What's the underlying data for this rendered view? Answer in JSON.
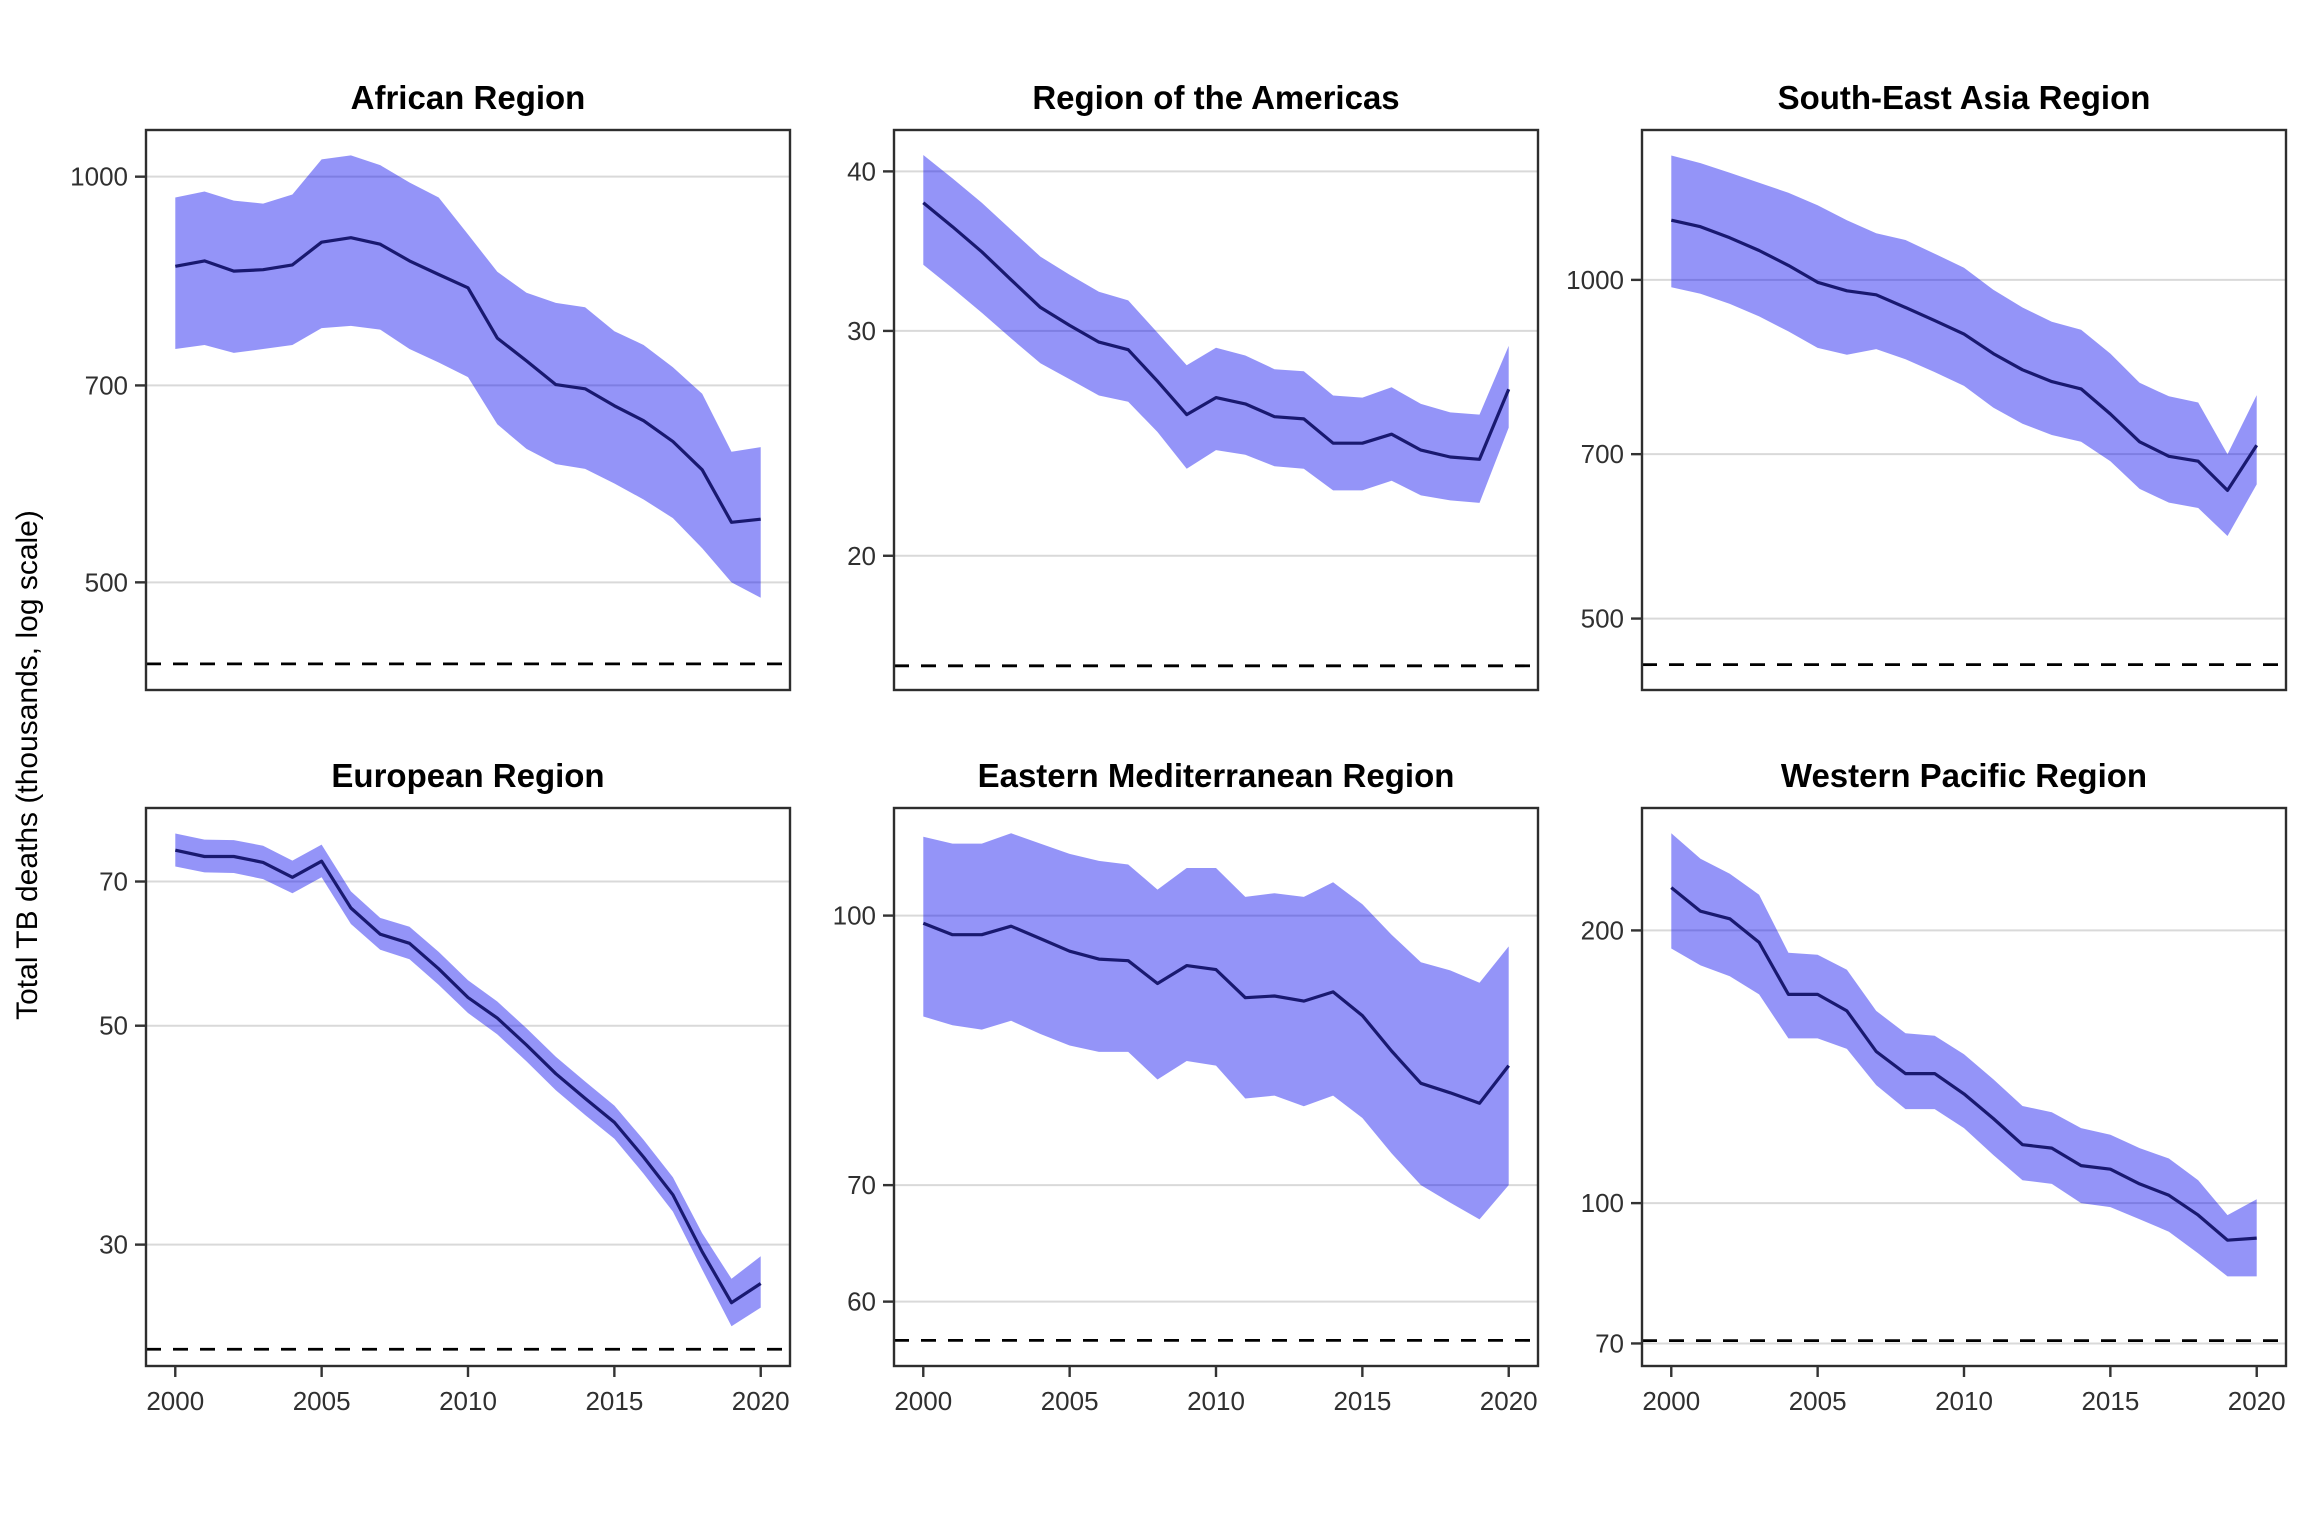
{
  "page": {
    "background": "#ffffff"
  },
  "y_axis_title": "Total TB deaths (thousands, log scale)",
  "style": {
    "ribbon_fill": "#0000ee",
    "ribbon_opacity": 0.42,
    "ribbon_rendered_color": "#9999ff",
    "line_color": "#191970",
    "gridline_color": "#d9d9d9",
    "reference_line_color": "#000000",
    "panel_border_color": "#2e2e2e",
    "tick_color": "#333333",
    "tick_label_color": "#303030",
    "title_color": "#000000"
  },
  "chart_data": [
    {
      "type": "line",
      "subtype": "line-with-confidence-ribbon",
      "title": "African Region",
      "ylabel": "Total TB deaths (thousands, log scale)",
      "y_scale": "log10",
      "ylim": [
        416,
        1083
      ],
      "y_ticks": [
        1000,
        700,
        500
      ],
      "x_ticks": [
        2000,
        2005,
        2010,
        2015,
        2020
      ],
      "x_tick_labels_visible": false,
      "xlim": [
        1999,
        2021
      ],
      "grid": "major-y-only",
      "legend": "none",
      "reference_line": {
        "style": "dashed",
        "value": 435
      },
      "x": [
        2000,
        2001,
        2002,
        2003,
        2004,
        2005,
        2006,
        2007,
        2008,
        2009,
        2010,
        2011,
        2012,
        2013,
        2014,
        2015,
        2016,
        2017,
        2018,
        2019,
        2020
      ],
      "series": [
        {
          "name": "best estimate",
          "values": [
            858,
            866,
            851,
            853,
            860,
            894,
            901,
            891,
            866,
            846,
            827,
            759,
            730,
            701,
            696,
            676,
            659,
            636,
            606,
            554,
            557
          ]
        },
        {
          "name": "lower uncertainty bound",
          "values": [
            745,
            750,
            740,
            745,
            750,
            772,
            775,
            770,
            745,
            728,
            710,
            655,
            628,
            612,
            607,
            592,
            576,
            558,
            530,
            500,
            487
          ]
        },
        {
          "name": "upper uncertainty bound",
          "values": [
            965,
            975,
            960,
            955,
            970,
            1030,
            1037,
            1020,
            990,
            965,
            906,
            850,
            820,
            806,
            800,
            768,
            750,
            722,
            690,
            625,
            630
          ]
        }
      ]
    },
    {
      "type": "line",
      "subtype": "line-with-confidence-ribbon",
      "title": "Region of the Americas",
      "ylabel": "Total TB deaths (thousands, log scale)",
      "y_scale": "log10",
      "ylim": [
        15.7,
        43.1
      ],
      "y_ticks": [
        40,
        30,
        20
      ],
      "x_ticks": [
        2000,
        2005,
        2010,
        2015,
        2020
      ],
      "x_tick_labels_visible": false,
      "xlim": [
        1999,
        2021
      ],
      "grid": "major-y-only",
      "legend": "none",
      "reference_line": {
        "style": "dashed",
        "value": 16.4
      },
      "x": [
        2000,
        2001,
        2002,
        2003,
        2004,
        2005,
        2006,
        2007,
        2008,
        2009,
        2010,
        2011,
        2012,
        2013,
        2014,
        2015,
        2016,
        2017,
        2018,
        2019,
        2020
      ],
      "series": [
        {
          "name": "best estimate",
          "values": [
            37.8,
            36.2,
            34.6,
            32.9,
            31.3,
            30.3,
            29.4,
            29.0,
            27.4,
            25.8,
            26.6,
            26.3,
            25.7,
            25.6,
            24.5,
            24.5,
            24.9,
            24.2,
            23.9,
            23.8,
            27.0
          ]
        },
        {
          "name": "lower uncertainty bound",
          "values": [
            33.8,
            32.4,
            31.0,
            29.6,
            28.3,
            27.5,
            26.7,
            26.4,
            25.0,
            23.4,
            24.2,
            24.0,
            23.5,
            23.4,
            22.5,
            22.5,
            22.9,
            22.3,
            22.1,
            22.0,
            25.2
          ]
        },
        {
          "name": "upper uncertainty bound",
          "values": [
            41.2,
            39.5,
            37.8,
            36.0,
            34.3,
            33.2,
            32.2,
            31.7,
            29.9,
            28.2,
            29.1,
            28.7,
            28.0,
            27.9,
            26.7,
            26.6,
            27.1,
            26.3,
            25.9,
            25.8,
            29.2
          ]
        }
      ]
    },
    {
      "type": "line",
      "subtype": "line-with-confidence-ribbon",
      "title": "South-East Asia Region",
      "ylabel": "Total TB deaths (thousands, log scale)",
      "y_scale": "log10",
      "ylim": [
        432,
        1359
      ],
      "y_ticks": [
        1000,
        700,
        500
      ],
      "x_ticks": [
        2000,
        2005,
        2010,
        2015,
        2020
      ],
      "x_tick_labels_visible": false,
      "xlim": [
        1999,
        2021
      ],
      "grid": "major-y-only",
      "legend": "none",
      "reference_line": {
        "style": "dashed",
        "value": 455
      },
      "x": [
        2000,
        2001,
        2002,
        2003,
        2004,
        2005,
        2006,
        2007,
        2008,
        2009,
        2010,
        2011,
        2012,
        2013,
        2014,
        2015,
        2016,
        2017,
        2018,
        2019,
        2020
      ],
      "series": [
        {
          "name": "best estimate",
          "values": [
            1130,
            1115,
            1090,
            1062,
            1030,
            995,
            978,
            970,
            945,
            920,
            895,
            860,
            832,
            812,
            800,
            760,
            718,
            697,
            690,
            650,
            713
          ]
        },
        {
          "name": "lower uncertainty bound",
          "values": [
            985,
            972,
            952,
            928,
            900,
            870,
            858,
            868,
            850,
            828,
            805,
            770,
            745,
            728,
            718,
            690,
            652,
            634,
            627,
            592,
            658
          ]
        },
        {
          "name": "upper uncertainty bound",
          "values": [
            1290,
            1270,
            1245,
            1220,
            1195,
            1165,
            1130,
            1100,
            1085,
            1055,
            1025,
            980,
            945,
            918,
            903,
            860,
            810,
            788,
            778,
            700,
            790
          ]
        }
      ]
    },
    {
      "type": "line",
      "subtype": "line-with-confidence-ribbon",
      "title": "European Region",
      "ylabel": "Total TB deaths (thousands, log scale)",
      "y_scale": "log10",
      "ylim": [
        22.6,
        83.1
      ],
      "y_ticks": [
        70,
        50,
        30
      ],
      "x_ticks": [
        2000,
        2005,
        2010,
        2015,
        2020
      ],
      "x_tick_labels_visible": true,
      "xlim": [
        1999,
        2021
      ],
      "grid": "major-y-only",
      "legend": "none",
      "reference_line": {
        "style": "dashed",
        "value": 23.5
      },
      "x": [
        2000,
        2001,
        2002,
        2003,
        2004,
        2005,
        2006,
        2007,
        2008,
        2009,
        2010,
        2011,
        2012,
        2013,
        2014,
        2015,
        2016,
        2017,
        2018,
        2019,
        2020
      ],
      "series": [
        {
          "name": "best estimate",
          "values": [
            75.3,
            74.2,
            74.2,
            73.2,
            70.7,
            73.4,
            65.8,
            61.9,
            60.6,
            57.1,
            53.4,
            50.9,
            47.8,
            44.7,
            42.2,
            39.9,
            36.8,
            33.7,
            29.5,
            26.2,
            27.4
          ]
        },
        {
          "name": "lower uncertainty bound",
          "values": [
            72.5,
            71.5,
            71.4,
            70.4,
            68.1,
            70.7,
            63.4,
            59.7,
            58.4,
            55.0,
            51.5,
            49.0,
            46.0,
            43.0,
            40.6,
            38.4,
            35.4,
            32.4,
            28.3,
            24.8,
            25.9
          ]
        },
        {
          "name": "upper uncertainty bound",
          "values": [
            78.3,
            77.2,
            77.1,
            76.1,
            73.5,
            76.3,
            68.4,
            64.3,
            63.0,
            59.4,
            55.6,
            52.9,
            49.7,
            46.5,
            43.9,
            41.5,
            38.3,
            35.1,
            30.8,
            27.7,
            29.2
          ]
        }
      ]
    },
    {
      "type": "line",
      "subtype": "line-with-confidence-ribbon",
      "title": "Eastern Mediterranean Region",
      "ylabel": "Total TB deaths (thousands, log scale)",
      "y_scale": "log10",
      "ylim": [
        55.1,
        115.3
      ],
      "y_ticks": [
        100,
        70,
        60
      ],
      "x_ticks": [
        2000,
        2005,
        2010,
        2015,
        2020
      ],
      "x_tick_labels_visible": true,
      "xlim": [
        1999,
        2021
      ],
      "grid": "major-y-only",
      "legend": "none",
      "reference_line": {
        "style": "dashed",
        "value": 57
      },
      "x": [
        2000,
        2001,
        2002,
        2003,
        2004,
        2005,
        2006,
        2007,
        2008,
        2009,
        2010,
        2011,
        2012,
        2013,
        2014,
        2015,
        2016,
        2017,
        2018,
        2019,
        2020
      ],
      "series": [
        {
          "name": "best estimate",
          "values": [
            99,
            97.5,
            97.5,
            98.6,
            97,
            95.4,
            94.4,
            94.2,
            91.4,
            93.6,
            93.1,
            89.7,
            89.9,
            89.3,
            90.4,
            87.6,
            83.6,
            80.1,
            79.1,
            78,
            82
          ]
        },
        {
          "name": "lower uncertainty bound",
          "values": [
            87.5,
            86.5,
            86,
            87,
            85.5,
            84.2,
            83.5,
            83.5,
            80.5,
            82.5,
            82,
            78.5,
            78.8,
            77.7,
            78.8,
            76.5,
            73,
            70,
            68.4,
            66.9,
            70
          ]
        },
        {
          "name": "upper uncertainty bound",
          "values": [
            111,
            110,
            110,
            111.5,
            110,
            108.5,
            107.5,
            107,
            103.5,
            106.5,
            106.5,
            102.5,
            103,
            102.5,
            104.5,
            101.5,
            97.5,
            94,
            93,
            91.5,
            96
          ]
        }
      ]
    },
    {
      "type": "line",
      "subtype": "line-with-confidence-ribbon",
      "title": "Western Pacific Region",
      "ylabel": "Total TB deaths (thousands, log scale)",
      "y_scale": "log10",
      "ylim": [
        66.1,
        273
      ],
      "y_ticks": [
        200,
        100,
        70
      ],
      "x_ticks": [
        2000,
        2005,
        2010,
        2015,
        2020
      ],
      "x_tick_labels_visible": true,
      "xlim": [
        1999,
        2021
      ],
      "grid": "major-y-only",
      "legend": "none",
      "reference_line": {
        "style": "dashed",
        "value": 70.5
      },
      "x": [
        2000,
        2001,
        2002,
        2003,
        2004,
        2005,
        2006,
        2007,
        2008,
        2009,
        2010,
        2011,
        2012,
        2013,
        2014,
        2015,
        2016,
        2017,
        2018,
        2019,
        2020
      ],
      "series": [
        {
          "name": "best estimate",
          "values": [
            223,
            210,
            206,
            194,
            170,
            170,
            163,
            147,
            139,
            139,
            132,
            124,
            116,
            115,
            110,
            109,
            105,
            102,
            97,
            91,
            91.5
          ]
        },
        {
          "name": "lower uncertainty bound",
          "values": [
            191,
            183,
            178,
            170,
            152,
            152,
            148,
            135,
            127,
            127,
            121,
            113,
            106,
            105,
            100,
            99,
            96,
            93,
            88,
            83,
            83
          ]
        },
        {
          "name": "upper uncertainty bound",
          "values": [
            256,
            240,
            231,
            219,
            189,
            188,
            181,
            163,
            154,
            153,
            146,
            137,
            128,
            126,
            121,
            119,
            115,
            112,
            106,
            97,
            101
          ]
        }
      ]
    }
  ]
}
